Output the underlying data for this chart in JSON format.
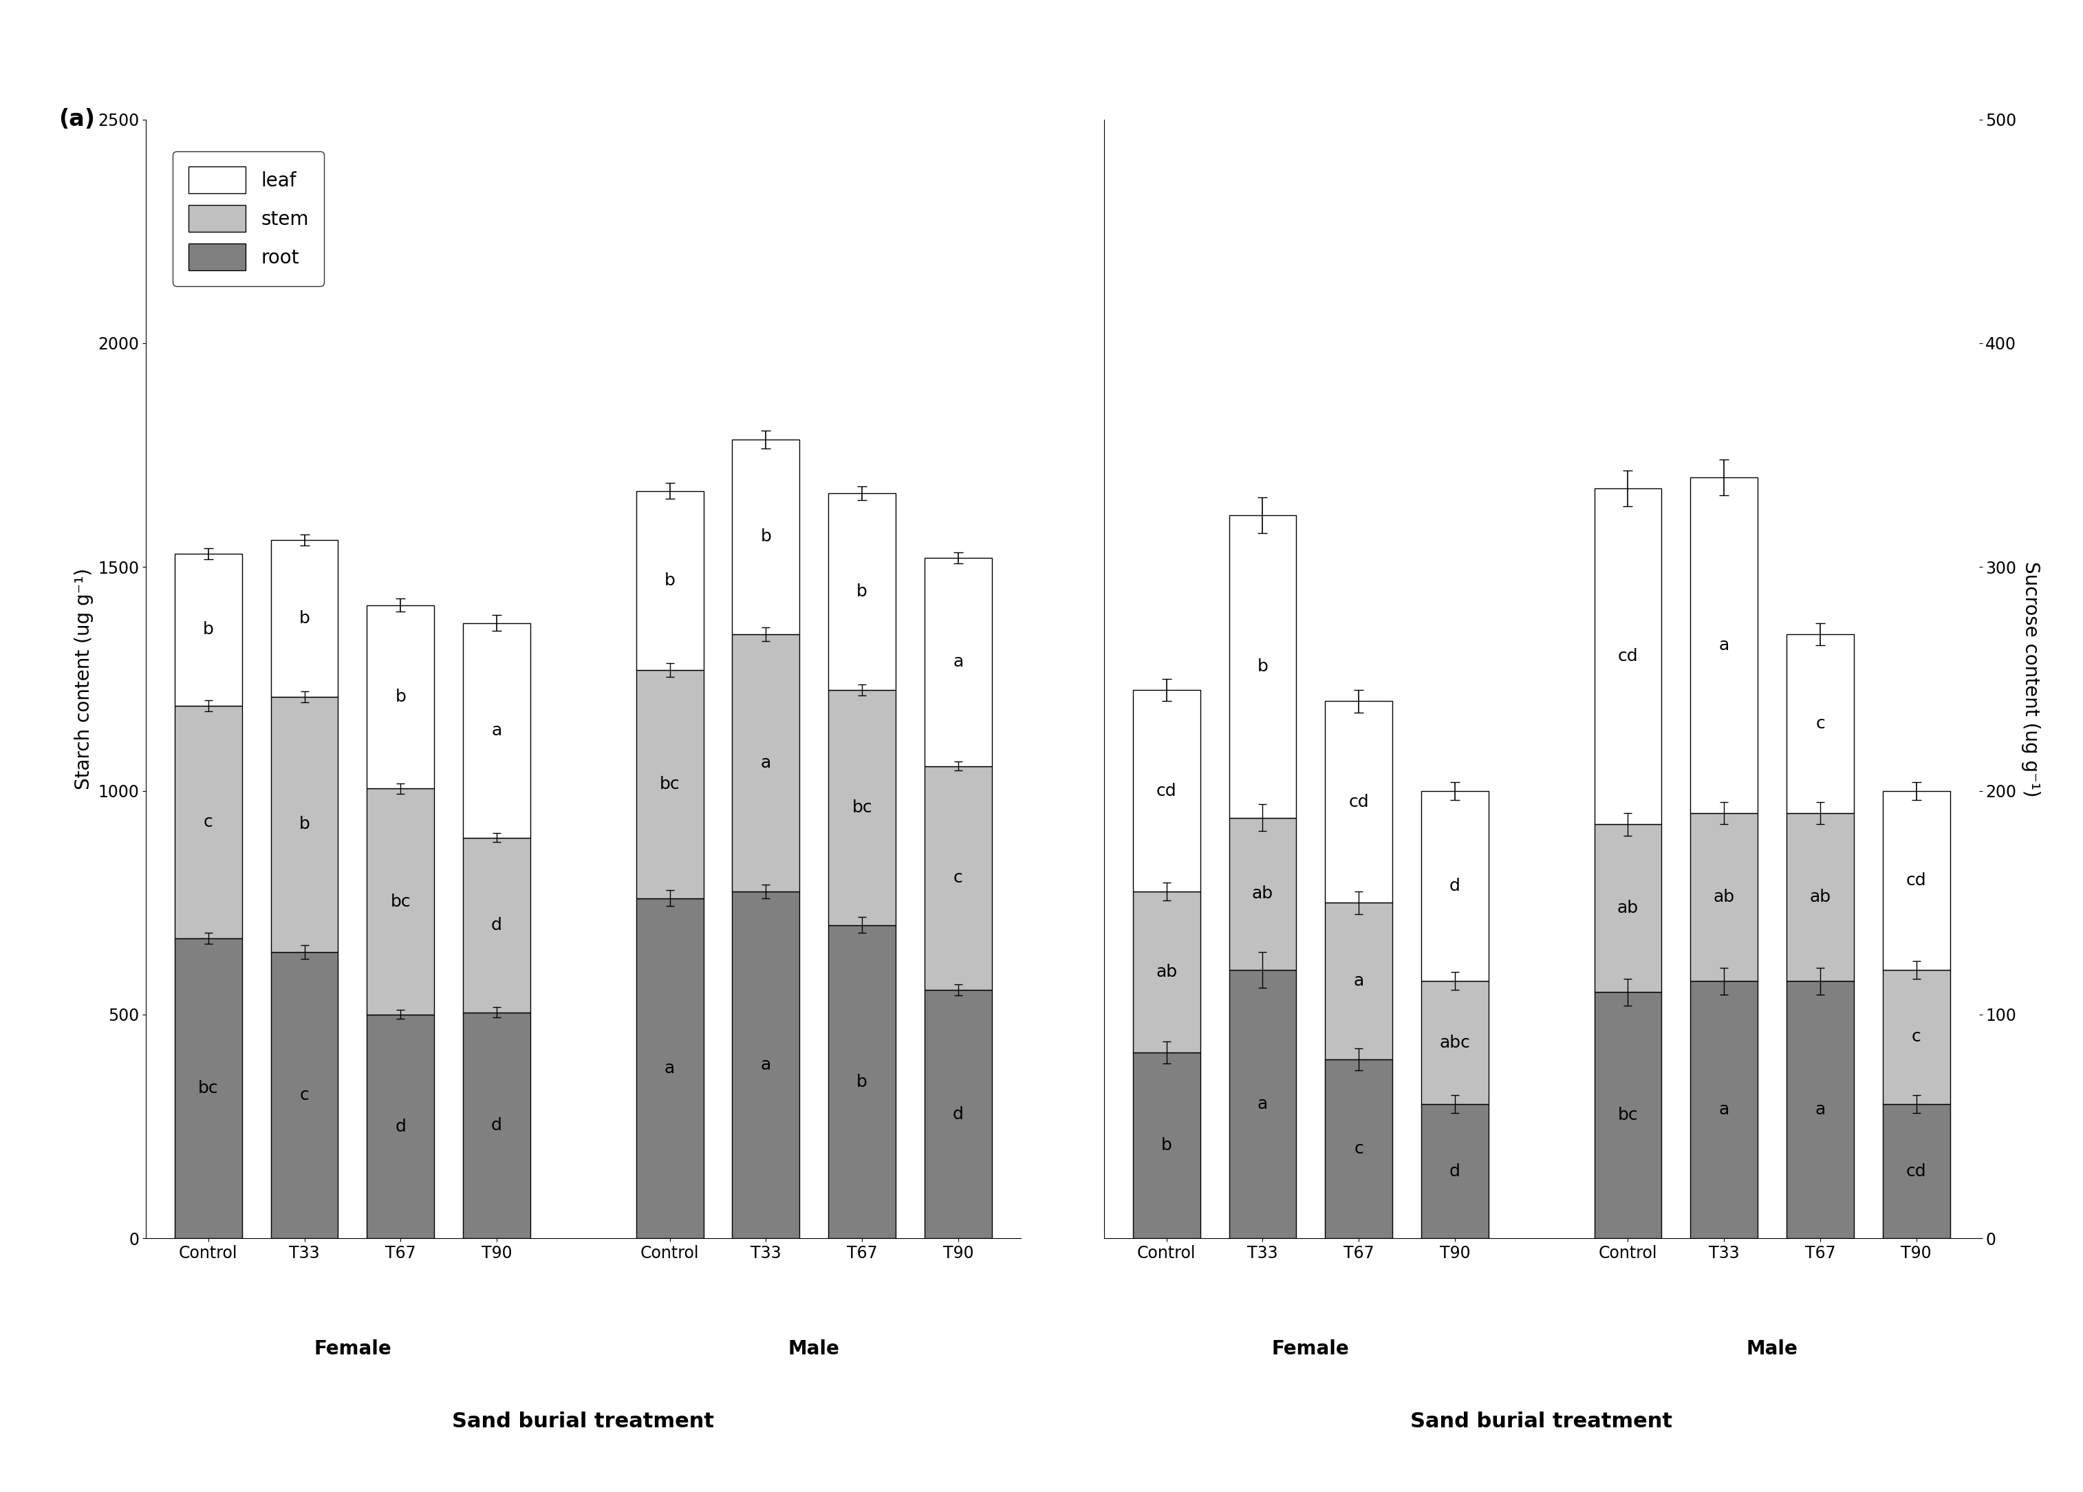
{
  "panel_a": {
    "ylabel": "Starch content (ug g⁻¹)",
    "ylim": [
      0,
      2500
    ],
    "yticks": [
      0,
      500,
      1000,
      1500,
      2000,
      2500
    ],
    "groups": [
      "Control",
      "T33",
      "T67",
      "T90",
      "Control",
      "T33",
      "T67",
      "T90"
    ],
    "xlabel": "Sand burial treatment",
    "root": [
      670,
      640,
      500,
      505,
      760,
      775,
      700,
      555
    ],
    "stem": [
      520,
      570,
      505,
      390,
      510,
      575,
      525,
      500
    ],
    "leaf": [
      340,
      350,
      410,
      480,
      400,
      435,
      440,
      465
    ],
    "root_err": [
      12,
      15,
      10,
      12,
      18,
      16,
      18,
      12
    ],
    "stem_err": [
      12,
      12,
      12,
      10,
      15,
      15,
      12,
      10
    ],
    "leaf_err": [
      12,
      12,
      15,
      18,
      18,
      20,
      15,
      12
    ],
    "root_labels": [
      "bc",
      "c",
      "d",
      "d",
      "a",
      "a",
      "b",
      "d"
    ],
    "stem_labels": [
      "c",
      "b",
      "bc",
      "d",
      "bc",
      "a",
      "bc",
      "c"
    ],
    "leaf_labels": [
      "b",
      "b",
      "b",
      "a",
      "b",
      "b",
      "b",
      "a"
    ]
  },
  "panel_b": {
    "ylabel": "Sucrose content (ug g⁻¹)",
    "ylim": [
      0,
      500
    ],
    "yticks": [
      0,
      100,
      200,
      300,
      400,
      500
    ],
    "groups": [
      "Control",
      "T33",
      "T67",
      "T90",
      "Control",
      "T33",
      "T67",
      "T90"
    ],
    "xlabel": "Sand burial treatment",
    "root": [
      83,
      120,
      80,
      60,
      110,
      115,
      115,
      60
    ],
    "stem": [
      72,
      68,
      70,
      55,
      75,
      75,
      75,
      60
    ],
    "leaf": [
      90,
      135,
      90,
      85,
      150,
      150,
      80,
      80
    ],
    "root_err": [
      5,
      8,
      5,
      4,
      6,
      6,
      6,
      4
    ],
    "stem_err": [
      4,
      6,
      5,
      4,
      5,
      5,
      5,
      4
    ],
    "leaf_err": [
      5,
      8,
      5,
      4,
      8,
      8,
      5,
      4
    ],
    "root_labels": [
      "b",
      "a",
      "c",
      "d",
      "bc",
      "a",
      "a",
      "cd"
    ],
    "stem_labels": [
      "ab",
      "ab",
      "a",
      "abc",
      "ab",
      "ab",
      "ab",
      "c"
    ],
    "leaf_labels": [
      "cd",
      "b",
      "cd",
      "d",
      "cd",
      "a",
      "c",
      "cd"
    ]
  },
  "colors": {
    "root": "#808080",
    "stem": "#c0c0c0",
    "leaf": "#ffffff"
  },
  "bar_width": 0.7,
  "font_size": 20,
  "label_font_size": 18,
  "tick_font_size": 17
}
